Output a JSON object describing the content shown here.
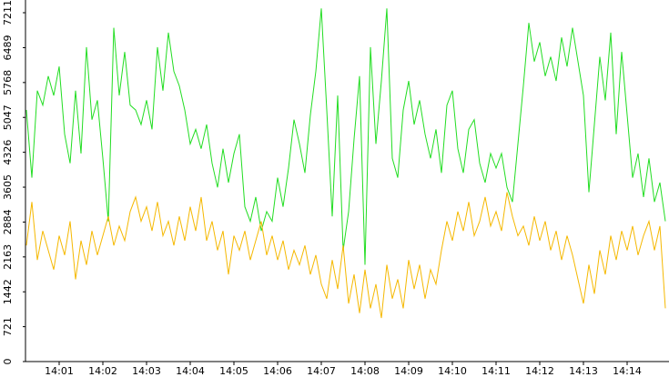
{
  "chart_data": {
    "type": "line",
    "categories": [
      null,
      null,
      null,
      null,
      null,
      null,
      "14:01",
      null,
      null,
      null,
      null,
      null,
      null,
      null,
      "14:02",
      null,
      null,
      null,
      null,
      null,
      null,
      null,
      "14:03",
      null,
      null,
      null,
      null,
      null,
      null,
      null,
      "14:04",
      null,
      null,
      null,
      null,
      null,
      null,
      null,
      "14:05",
      null,
      null,
      null,
      null,
      null,
      null,
      null,
      "14:06",
      null,
      null,
      null,
      null,
      null,
      null,
      null,
      "14:07",
      null,
      null,
      null,
      null,
      null,
      null,
      null,
      "14:08",
      null,
      null,
      null,
      null,
      null,
      null,
      null,
      "14:09",
      null,
      null,
      null,
      null,
      null,
      null,
      null,
      "14:10",
      null,
      null,
      null,
      null,
      null,
      null,
      null,
      "14:11",
      null,
      null,
      null,
      null,
      null,
      null,
      null,
      "14:12",
      null,
      null,
      null,
      null,
      null,
      null,
      null,
      "14:13",
      null,
      null,
      null,
      null,
      null,
      null,
      null,
      "14:14",
      null,
      null,
      null,
      null,
      null,
      null,
      null
    ],
    "series": [
      {
        "color": "#22dd22",
        "values": [
          5200,
          3800,
          5600,
          5300,
          5900,
          5500,
          6100,
          4700,
          4100,
          5600,
          4300,
          6500,
          5000,
          5400,
          4200,
          2900,
          6900,
          5500,
          6400,
          5300,
          5200,
          4900,
          5400,
          4800,
          6500,
          5600,
          6800,
          6000,
          5700,
          5200,
          4500,
          4800,
          4400,
          4900,
          4100,
          3600,
          4400,
          3700,
          4300,
          4700,
          3200,
          2900,
          3400,
          2700,
          3100,
          2900,
          3800,
          3200,
          4000,
          5000,
          4500,
          3900,
          5100,
          6000,
          7300,
          5200,
          3000,
          5500,
          2300,
          3100,
          4600,
          5900,
          2000,
          6500,
          4500,
          5800,
          7300,
          4200,
          3800,
          5200,
          5800,
          4900,
          5400,
          4700,
          4200,
          4800,
          3900,
          5300,
          5600,
          4400,
          3900,
          4800,
          5000,
          4100,
          3700,
          4300,
          4000,
          4300,
          3600,
          3300,
          4500,
          5700,
          7000,
          6200,
          6600,
          5900,
          6300,
          5800,
          6700,
          6100,
          6900,
          6200,
          5500,
          3500,
          4900,
          6300,
          5400,
          6800,
          4700,
          6400,
          5100,
          3800,
          4300,
          3400,
          4200,
          3300,
          3700,
          2900
        ]
      },
      {
        "color": "#f5b800",
        "values": [
          2400,
          3300,
          2100,
          2700,
          2300,
          1900,
          2600,
          2200,
          2900,
          1700,
          2500,
          2000,
          2700,
          2200,
          2600,
          3000,
          2400,
          2800,
          2500,
          3100,
          3400,
          2900,
          3200,
          2700,
          3300,
          2600,
          2900,
          2400,
          3000,
          2500,
          3200,
          2700,
          3400,
          2500,
          2900,
          2300,
          2700,
          1800,
          2600,
          2300,
          2700,
          2100,
          2500,
          2900,
          2200,
          2600,
          2100,
          2500,
          1900,
          2300,
          2000,
          2400,
          1800,
          2200,
          1600,
          1300,
          2100,
          1500,
          2400,
          1200,
          1800,
          1000,
          1900,
          1100,
          1600,
          900,
          2000,
          1300,
          1700,
          1100,
          2100,
          1500,
          2000,
          1300,
          1900,
          1600,
          2300,
          2900,
          2500,
          3100,
          2700,
          3300,
          2600,
          2900,
          3400,
          2800,
          3100,
          2700,
          3500,
          3000,
          2600,
          2800,
          2400,
          3000,
          2500,
          2900,
          2300,
          2700,
          2100,
          2600,
          2200,
          1700,
          1200,
          2000,
          1400,
          2300,
          1800,
          2600,
          2100,
          2700,
          2300,
          2800,
          2200,
          2600,
          2900,
          2300,
          2800,
          1100
        ]
      }
    ],
    "ylim": [
      0,
      7474
    ],
    "yticks": [
      0,
      721,
      1442,
      2163,
      2884,
      3605,
      4326,
      5047,
      5768,
      6489,
      7211
    ]
  }
}
